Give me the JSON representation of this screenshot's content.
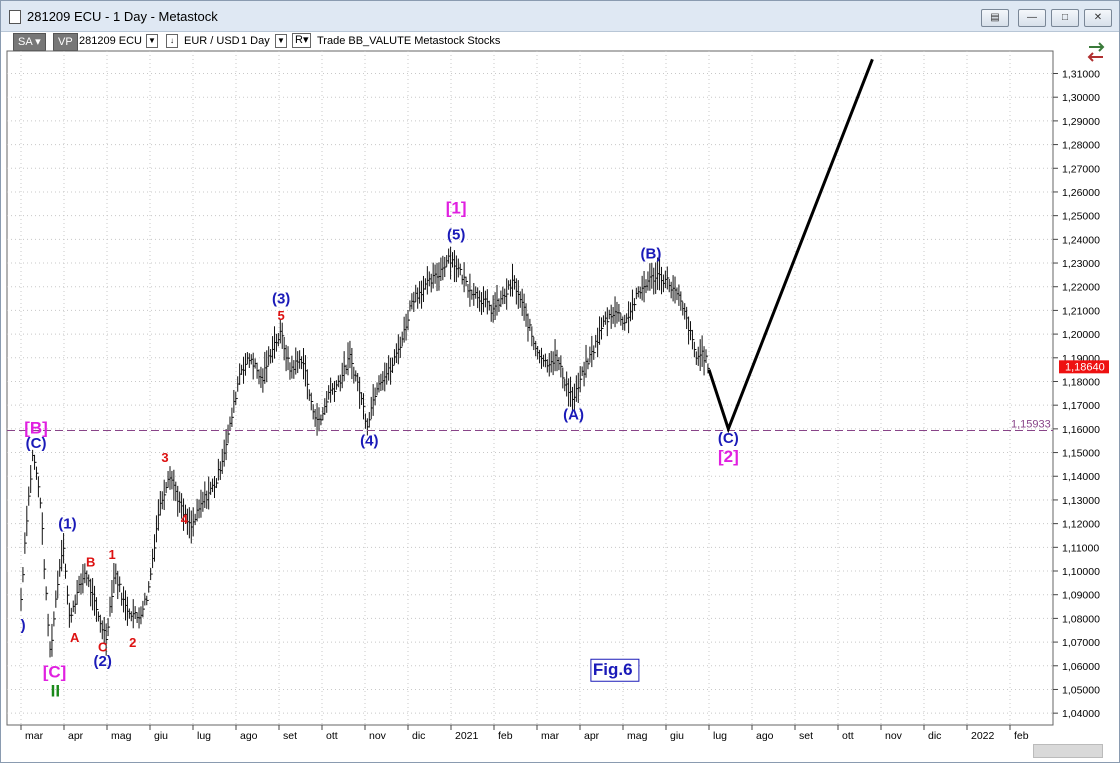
{
  "window": {
    "title": "281209 ECU - 1 Day - Metastock",
    "buttons": [
      "restore",
      "minimize",
      "maximize",
      "close"
    ]
  },
  "toolbar": {
    "sa": "SA",
    "vp": "VP",
    "symbol": "281209 ECU",
    "pair": "EUR / USD",
    "period": "1 Day",
    "r": "R",
    "rest": "Trade  BB_VALUTE  Metastock  Stocks"
  },
  "colors": {
    "blue": "#1a1ab8",
    "magenta": "#e020e0",
    "red": "#dd1111",
    "green": "#1a8a1a",
    "price_bg": "#ee1111",
    "dashed": "#884488"
  },
  "chart_data": {
    "type": "bar",
    "y_ticks": [
      "1,04000",
      "1,05000",
      "1,06000",
      "1,07000",
      "1,08000",
      "1,09000",
      "1,10000",
      "1,11000",
      "1,12000",
      "1,13000",
      "1,14000",
      "1,15000",
      "1,16000",
      "1,17000",
      "1,18000",
      "1,19000",
      "1,20000",
      "1,21000",
      "1,22000",
      "1,23000",
      "1,24000",
      "1,25000",
      "1,26000",
      "1,27000",
      "1,28000",
      "1,29000",
      "1,30000",
      "1,31000"
    ],
    "ylim": [
      1.035,
      1.3195
    ],
    "x_ticks": [
      "mar",
      "apr",
      "mag",
      "giu",
      "lug",
      "ago",
      "set",
      "ott",
      "nov",
      "dic",
      "2021",
      "feb",
      "mar",
      "apr",
      "mag",
      "giu",
      "lug",
      "ago",
      "set",
      "ott",
      "nov",
      "dic",
      "2022",
      "feb"
    ],
    "x_range": [
      0,
      24
    ],
    "current_price": "1,18640",
    "current_price_value": 1.1864,
    "support_level": "1,15933",
    "support_value": 1.15933,
    "price_path": [
      [
        0.0,
        1.088
      ],
      [
        0.12,
        1.12
      ],
      [
        0.28,
        1.15
      ],
      [
        0.45,
        1.13
      ],
      [
        0.58,
        1.09
      ],
      [
        0.68,
        1.065
      ],
      [
        0.85,
        1.095
      ],
      [
        0.98,
        1.113
      ],
      [
        1.12,
        1.08
      ],
      [
        1.3,
        1.09
      ],
      [
        1.5,
        1.1
      ],
      [
        1.75,
        1.083
      ],
      [
        1.98,
        1.072
      ],
      [
        2.18,
        1.1
      ],
      [
        2.42,
        1.085
      ],
      [
        2.72,
        1.08
      ],
      [
        2.95,
        1.09
      ],
      [
        3.2,
        1.125
      ],
      [
        3.45,
        1.142
      ],
      [
        3.75,
        1.125
      ],
      [
        3.95,
        1.118
      ],
      [
        4.25,
        1.13
      ],
      [
        4.55,
        1.138
      ],
      [
        4.85,
        1.16
      ],
      [
        5.1,
        1.185
      ],
      [
        5.35,
        1.19
      ],
      [
        5.6,
        1.18
      ],
      [
        5.85,
        1.195
      ],
      [
        6.05,
        1.2
      ],
      [
        6.25,
        1.185
      ],
      [
        6.55,
        1.19
      ],
      [
        6.75,
        1.17
      ],
      [
        6.95,
        1.162
      ],
      [
        7.15,
        1.175
      ],
      [
        7.4,
        1.18
      ],
      [
        7.65,
        1.19
      ],
      [
        7.85,
        1.178
      ],
      [
        8.05,
        1.162
      ],
      [
        8.3,
        1.18
      ],
      [
        8.6,
        1.185
      ],
      [
        8.9,
        1.2
      ],
      [
        9.1,
        1.215
      ],
      [
        9.4,
        1.22
      ],
      [
        9.7,
        1.225
      ],
      [
        9.95,
        1.233
      ],
      [
        10.15,
        1.228
      ],
      [
        10.4,
        1.22
      ],
      [
        10.7,
        1.215
      ],
      [
        10.95,
        1.21
      ],
      [
        11.2,
        1.215
      ],
      [
        11.45,
        1.222
      ],
      [
        11.7,
        1.21
      ],
      [
        11.95,
        1.195
      ],
      [
        12.2,
        1.188
      ],
      [
        12.45,
        1.19
      ],
      [
        12.65,
        1.18
      ],
      [
        12.85,
        1.172
      ],
      [
        13.1,
        1.185
      ],
      [
        13.35,
        1.195
      ],
      [
        13.55,
        1.205
      ],
      [
        13.8,
        1.21
      ],
      [
        14.05,
        1.205
      ],
      [
        14.3,
        1.215
      ],
      [
        14.55,
        1.222
      ],
      [
        14.8,
        1.225
      ],
      [
        15.05,
        1.222
      ],
      [
        15.3,
        1.215
      ],
      [
        15.5,
        1.205
      ],
      [
        15.7,
        1.19
      ],
      [
        15.85,
        1.192
      ],
      [
        16.0,
        1.186
      ]
    ],
    "projection": [
      [
        16.0,
        1.185
      ],
      [
        16.45,
        1.16
      ],
      [
        19.8,
        1.316
      ]
    ],
    "labels": [
      {
        "text": "[B]",
        "x": 0.35,
        "y": 1.158,
        "color": "magenta"
      },
      {
        "text": "(C)",
        "x": 0.35,
        "y": 1.152,
        "color": "blue"
      },
      {
        "text": "(1)",
        "x": 1.08,
        "y": 1.118,
        "color": "blue"
      },
      {
        "text": "B",
        "x": 1.62,
        "y": 1.102,
        "color": "red"
      },
      {
        "text": "1",
        "x": 2.12,
        "y": 1.105,
        "color": "red"
      },
      {
        "text": "A",
        "x": 1.25,
        "y": 1.07,
        "color": "red"
      },
      {
        "text": "C",
        "x": 1.9,
        "y": 1.066,
        "color": "red"
      },
      {
        "text": "2",
        "x": 2.6,
        "y": 1.068,
        "color": "red"
      },
      {
        "text": "(2)",
        "x": 1.9,
        "y": 1.06,
        "color": "blue"
      },
      {
        "text": "[C]",
        "x": 0.78,
        "y": 1.055,
        "color": "magenta"
      },
      {
        "text": "II",
        "x": 0.8,
        "y": 1.047,
        "color": "green"
      },
      {
        "text": "3",
        "x": 3.35,
        "y": 1.146,
        "color": "red"
      },
      {
        "text": "4",
        "x": 3.8,
        "y": 1.12,
        "color": "red"
      },
      {
        "text": "(3)",
        "x": 6.05,
        "y": 1.213,
        "color": "blue"
      },
      {
        "text": "5",
        "x": 6.05,
        "y": 1.206,
        "color": "red"
      },
      {
        "text": "(4)",
        "x": 8.1,
        "y": 1.153,
        "color": "blue"
      },
      {
        "text": "[1]",
        "x": 10.12,
        "y": 1.251,
        "color": "magenta"
      },
      {
        "text": "(5)",
        "x": 10.12,
        "y": 1.24,
        "color": "blue"
      },
      {
        "text": "(A)",
        "x": 12.85,
        "y": 1.164,
        "color": "blue"
      },
      {
        "text": "(B)",
        "x": 14.65,
        "y": 1.232,
        "color": "blue"
      },
      {
        "text": "(C)",
        "x": 16.45,
        "y": 1.154,
        "color": "blue"
      },
      {
        "text": "[2]",
        "x": 16.45,
        "y": 1.146,
        "color": "magenta"
      },
      {
        "text": ")",
        "x": 0.05,
        "y": 1.075,
        "color": "blue"
      }
    ],
    "fig_label": "Fig.6"
  }
}
